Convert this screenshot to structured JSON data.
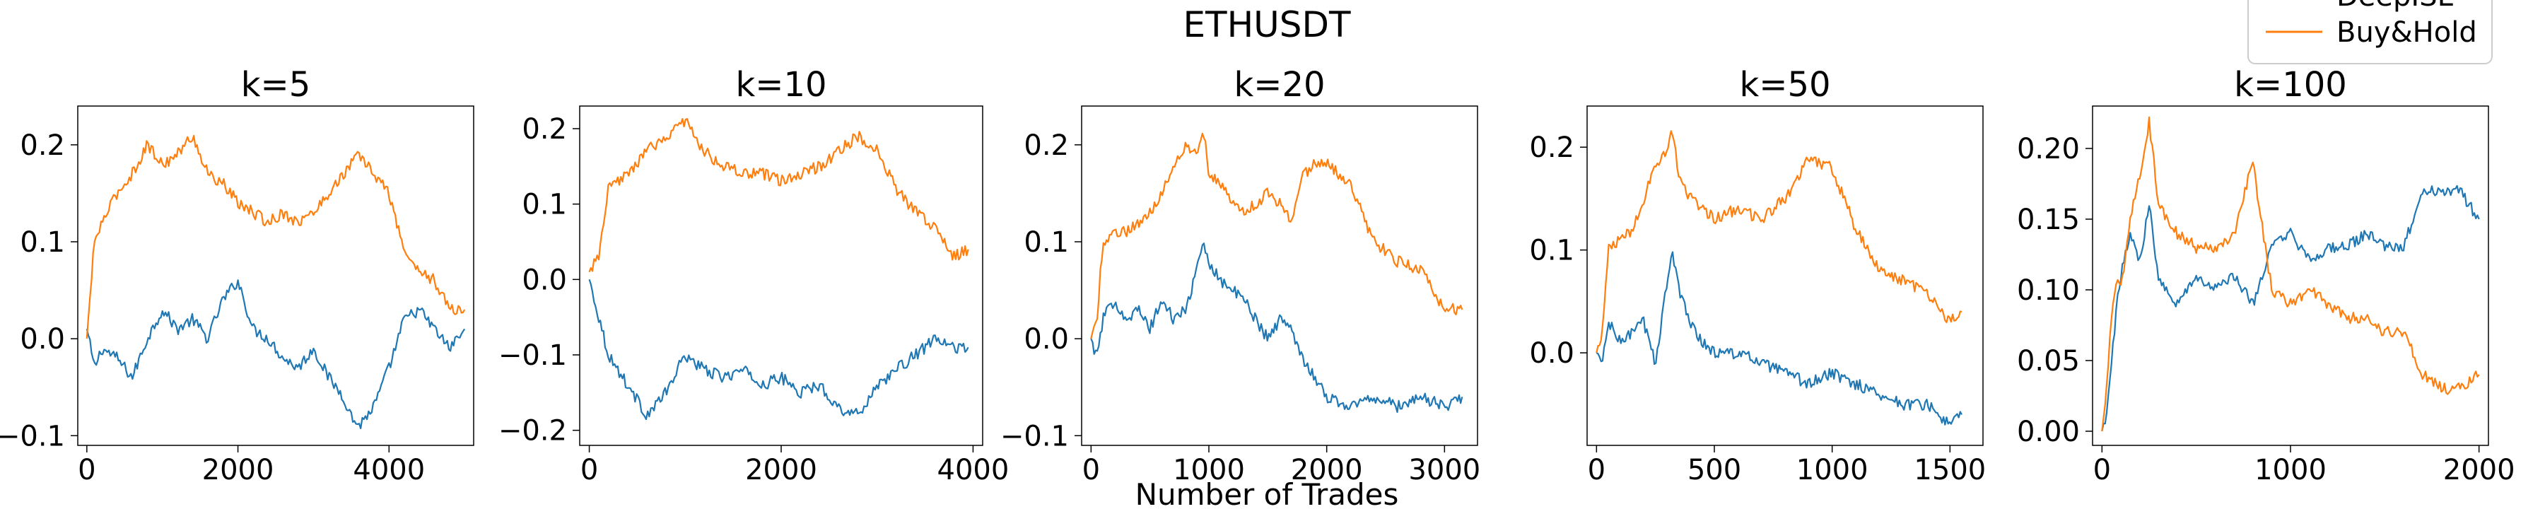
{
  "title": "ETHUSDT",
  "xlabel": "Number of Trades",
  "legend": {
    "placement": "top-right",
    "entries": [
      {
        "name": "DeepISL",
        "color": "#1f77b4"
      },
      {
        "name": "Buy&Hold",
        "color": "#ff7f0e"
      }
    ]
  },
  "colors": {
    "deepisl": "#1f77b4",
    "buyhold": "#ff7f0e"
  },
  "chart_data": [
    {
      "type": "line",
      "title": "k=5",
      "xlim": [
        -120,
        5120
      ],
      "ylim": [
        -0.11,
        0.24
      ],
      "xticks": [
        0,
        2000,
        4000
      ],
      "xtick_labels": [
        "0",
        "2000",
        "4000"
      ],
      "yticks": [
        -0.1,
        0.0,
        0.1,
        0.2
      ],
      "ytick_labels": [
        "−0.1",
        "0.0",
        "0.1",
        "0.2"
      ],
      "series": [
        {
          "name": "DeepISL",
          "color": "#1f77b4",
          "x": [
            0,
            100,
            200,
            400,
            600,
            800,
            1000,
            1200,
            1400,
            1600,
            1800,
            2000,
            2200,
            2400,
            2600,
            2800,
            3000,
            3200,
            3400,
            3500,
            3600,
            3800,
            4000,
            4200,
            4400,
            4600,
            4800,
            5000
          ],
          "y": [
            0.01,
            -0.03,
            -0.01,
            -0.02,
            -0.04,
            0.0,
            0.03,
            0.01,
            0.02,
            0.0,
            0.04,
            0.06,
            0.01,
            0.0,
            -0.02,
            -0.03,
            -0.01,
            -0.04,
            -0.06,
            -0.08,
            -0.09,
            -0.07,
            -0.03,
            0.02,
            0.03,
            0.01,
            -0.01,
            0.01
          ]
        },
        {
          "name": "Buy&Hold",
          "color": "#ff7f0e",
          "x": [
            0,
            100,
            200,
            400,
            600,
            800,
            1000,
            1200,
            1400,
            1600,
            1800,
            2000,
            2200,
            2400,
            2600,
            2800,
            3000,
            3200,
            3400,
            3500,
            3600,
            3800,
            4000,
            4200,
            4400,
            4600,
            4800,
            5000
          ],
          "y": [
            0.0,
            0.1,
            0.12,
            0.15,
            0.17,
            0.2,
            0.18,
            0.19,
            0.21,
            0.17,
            0.16,
            0.14,
            0.13,
            0.12,
            0.13,
            0.12,
            0.13,
            0.15,
            0.17,
            0.18,
            0.19,
            0.17,
            0.15,
            0.09,
            0.07,
            0.06,
            0.03,
            0.03
          ]
        }
      ]
    },
    {
      "type": "line",
      "title": "k=10",
      "xlim": [
        -100,
        4100
      ],
      "ylim": [
        -0.22,
        0.23
      ],
      "xticks": [
        0,
        2000,
        4000
      ],
      "xtick_labels": [
        "0",
        "2000",
        "4000"
      ],
      "yticks": [
        -0.2,
        -0.1,
        0.0,
        0.1,
        0.2
      ],
      "ytick_labels": [
        "−0.2",
        "−0.1",
        "0.0",
        "0.1",
        "0.2"
      ],
      "series": [
        {
          "name": "DeepISL",
          "color": "#1f77b4",
          "x": [
            0,
            100,
            200,
            400,
            600,
            800,
            1000,
            1200,
            1400,
            1600,
            1800,
            2000,
            2200,
            2400,
            2600,
            2800,
            3000,
            3200,
            3400,
            3600,
            3800,
            3950
          ],
          "y": [
            0.0,
            -0.05,
            -0.1,
            -0.14,
            -0.18,
            -0.15,
            -0.1,
            -0.12,
            -0.13,
            -0.12,
            -0.14,
            -0.13,
            -0.15,
            -0.14,
            -0.17,
            -0.18,
            -0.14,
            -0.12,
            -0.1,
            -0.08,
            -0.09,
            -0.09
          ]
        },
        {
          "name": "Buy&Hold",
          "color": "#ff7f0e",
          "x": [
            0,
            100,
            200,
            400,
            600,
            800,
            1000,
            1200,
            1400,
            1600,
            1800,
            2000,
            2200,
            2400,
            2600,
            2800,
            3000,
            3200,
            3400,
            3600,
            3800,
            3950
          ],
          "y": [
            0.01,
            0.03,
            0.12,
            0.14,
            0.17,
            0.19,
            0.21,
            0.17,
            0.15,
            0.14,
            0.14,
            0.13,
            0.14,
            0.15,
            0.17,
            0.19,
            0.17,
            0.12,
            0.09,
            0.07,
            0.03,
            0.04
          ]
        }
      ]
    },
    {
      "type": "line",
      "title": "k=20",
      "xlim": [
        -80,
        3280
      ],
      "ylim": [
        -0.11,
        0.24
      ],
      "xticks": [
        0,
        1000,
        2000,
        3000
      ],
      "xtick_labels": [
        "0",
        "1000",
        "2000",
        "3000"
      ],
      "yticks": [
        -0.1,
        0.0,
        0.1,
        0.2
      ],
      "ytick_labels": [
        "−0.1",
        "0.0",
        "0.1",
        "0.2"
      ],
      "series": [
        {
          "name": "DeepISL",
          "color": "#1f77b4",
          "x": [
            0,
            50,
            100,
            200,
            300,
            400,
            500,
            600,
            700,
            800,
            900,
            950,
            1000,
            1100,
            1200,
            1300,
            1400,
            1500,
            1600,
            1700,
            1800,
            1900,
            2000,
            2200,
            2400,
            2600,
            2800,
            3000,
            3150
          ],
          "y": [
            0.0,
            -0.02,
            0.02,
            0.04,
            0.02,
            0.03,
            0.01,
            0.04,
            0.02,
            0.03,
            0.07,
            0.1,
            0.08,
            0.06,
            0.05,
            0.04,
            0.02,
            0.0,
            0.02,
            0.01,
            -0.02,
            -0.04,
            -0.06,
            -0.07,
            -0.06,
            -0.07,
            -0.06,
            -0.07,
            -0.06
          ]
        },
        {
          "name": "Buy&Hold",
          "color": "#ff7f0e",
          "x": [
            0,
            50,
            100,
            200,
            300,
            400,
            500,
            600,
            700,
            800,
            900,
            950,
            1000,
            1100,
            1200,
            1300,
            1400,
            1500,
            1600,
            1700,
            1800,
            1900,
            2000,
            2200,
            2400,
            2600,
            2800,
            3000,
            3150
          ],
          "y": [
            0.0,
            0.02,
            0.1,
            0.11,
            0.11,
            0.12,
            0.13,
            0.15,
            0.18,
            0.2,
            0.19,
            0.22,
            0.17,
            0.16,
            0.14,
            0.13,
            0.14,
            0.15,
            0.14,
            0.12,
            0.17,
            0.18,
            0.18,
            0.16,
            0.1,
            0.08,
            0.07,
            0.03,
            0.03
          ]
        }
      ]
    },
    {
      "type": "line",
      "title": "k=50",
      "xlim": [
        -40,
        1640
      ],
      "ylim": [
        -0.09,
        0.24
      ],
      "xticks": [
        0,
        500,
        1000,
        1500
      ],
      "xtick_labels": [
        "0",
        "500",
        "1000",
        "1500"
      ],
      "yticks": [
        0.0,
        0.1,
        0.2
      ],
      "ytick_labels": [
        "0.0",
        "0.1",
        "0.2"
      ],
      "series": [
        {
          "name": "DeepISL",
          "color": "#1f77b4",
          "x": [
            0,
            25,
            50,
            100,
            150,
            200,
            250,
            300,
            320,
            350,
            400,
            450,
            500,
            600,
            700,
            800,
            900,
            1000,
            1100,
            1200,
            1300,
            1400,
            1500,
            1550
          ],
          "y": [
            0.0,
            -0.01,
            0.03,
            0.01,
            0.02,
            0.03,
            -0.01,
            0.07,
            0.1,
            0.06,
            0.03,
            0.01,
            0.0,
            0.0,
            -0.01,
            -0.02,
            -0.03,
            -0.02,
            -0.03,
            -0.04,
            -0.05,
            -0.05,
            -0.07,
            -0.06
          ]
        },
        {
          "name": "Buy&Hold",
          "color": "#ff7f0e",
          "x": [
            0,
            25,
            50,
            100,
            150,
            200,
            250,
            300,
            320,
            350,
            400,
            450,
            500,
            600,
            700,
            800,
            900,
            1000,
            1100,
            1200,
            1300,
            1400,
            1500,
            1550
          ],
          "y": [
            0.0,
            0.02,
            0.1,
            0.11,
            0.12,
            0.15,
            0.18,
            0.2,
            0.22,
            0.17,
            0.15,
            0.14,
            0.13,
            0.14,
            0.13,
            0.15,
            0.19,
            0.18,
            0.12,
            0.08,
            0.07,
            0.06,
            0.03,
            0.04
          ]
        }
      ]
    },
    {
      "type": "line",
      "title": "k=100",
      "xlim": [
        -50,
        2050
      ],
      "ylim": [
        -0.01,
        0.23
      ],
      "xticks": [
        0,
        1000,
        2000
      ],
      "xtick_labels": [
        "0",
        "1000",
        "2000"
      ],
      "yticks": [
        0.0,
        0.05,
        0.1,
        0.15,
        0.2
      ],
      "ytick_labels": [
        "0.00",
        "0.05",
        "0.10",
        "0.15",
        "0.20"
      ],
      "series": [
        {
          "name": "DeepISL",
          "color": "#1f77b4",
          "x": [
            0,
            20,
            50,
            80,
            100,
            150,
            200,
            250,
            300,
            400,
            500,
            600,
            700,
            800,
            900,
            1000,
            1100,
            1200,
            1300,
            1400,
            1500,
            1600,
            1700,
            1800,
            1900,
            2000
          ],
          "y": [
            0.0,
            0.01,
            0.05,
            0.09,
            0.11,
            0.14,
            0.12,
            0.16,
            0.11,
            0.09,
            0.11,
            0.1,
            0.11,
            0.09,
            0.13,
            0.14,
            0.12,
            0.13,
            0.13,
            0.14,
            0.13,
            0.13,
            0.17,
            0.17,
            0.17,
            0.15
          ]
        },
        {
          "name": "Buy&Hold",
          "color": "#ff7f0e",
          "x": [
            0,
            20,
            50,
            80,
            100,
            150,
            200,
            250,
            300,
            400,
            500,
            600,
            700,
            800,
            900,
            1000,
            1100,
            1200,
            1300,
            1400,
            1500,
            1600,
            1700,
            1800,
            1900,
            2000
          ],
          "y": [
            0.0,
            0.02,
            0.08,
            0.11,
            0.1,
            0.15,
            0.18,
            0.22,
            0.16,
            0.14,
            0.13,
            0.13,
            0.14,
            0.19,
            0.1,
            0.09,
            0.1,
            0.09,
            0.08,
            0.08,
            0.07,
            0.07,
            0.04,
            0.03,
            0.03,
            0.04
          ]
        }
      ]
    }
  ]
}
